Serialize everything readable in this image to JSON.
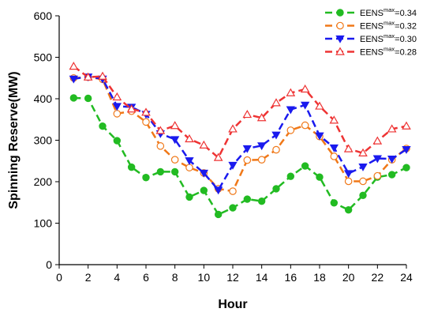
{
  "chart_data": {
    "type": "line",
    "title": "",
    "xlabel": "Hour",
    "ylabel": "Spinning Reserve(MW)",
    "xlim": [
      0,
      24
    ],
    "ylim": [
      0,
      600
    ],
    "xticks": [
      0,
      2,
      4,
      6,
      8,
      10,
      12,
      14,
      16,
      18,
      20,
      22,
      24
    ],
    "yticks": [
      0,
      100,
      200,
      300,
      400,
      500,
      600
    ],
    "grid": false,
    "legend_position": "top-right",
    "x": [
      1,
      2,
      3,
      4,
      5,
      6,
      7,
      8,
      9,
      10,
      11,
      12,
      13,
      14,
      15,
      16,
      17,
      18,
      19,
      20,
      21,
      22,
      23,
      24
    ],
    "series": [
      {
        "name": "EENS^max=0.34",
        "legend_base": "EENS",
        "legend_sup": "max",
        "legend_value": "=0.34",
        "color": "#22bb22",
        "marker": "circle-filled",
        "values": [
          402,
          401,
          334,
          299,
          235,
          210,
          224,
          224,
          163,
          179,
          121,
          137,
          158,
          153,
          183,
          213,
          238,
          211,
          149,
          132,
          167,
          211,
          217,
          234
        ]
      },
      {
        "name": "EENS^max=0.32",
        "legend_base": "EENS",
        "legend_sup": "max",
        "legend_value": "=0.32",
        "color": "#f07818",
        "marker": "circle-open",
        "values": [
          450,
          452,
          447,
          364,
          370,
          344,
          286,
          253,
          234,
          221,
          183,
          177,
          252,
          253,
          277,
          324,
          336,
          309,
          261,
          201,
          201,
          214,
          253,
          280
        ]
      },
      {
        "name": "EENS^max=0.30",
        "legend_base": "EENS",
        "legend_sup": "max",
        "legend_value": "=0.30",
        "color": "#1a1aee",
        "marker": "triangle-down-filled",
        "values": [
          448,
          453,
          448,
          382,
          380,
          363,
          316,
          302,
          251,
          221,
          180,
          240,
          280,
          287,
          313,
          374,
          385,
          311,
          282,
          220,
          236,
          256,
          255,
          278
        ]
      },
      {
        "name": "EENS^max=0.28",
        "legend_base": "EENS",
        "legend_sup": "max",
        "legend_value": "=0.28",
        "color": "#ee3333",
        "marker": "triangle-up-open",
        "values": [
          478,
          452,
          454,
          404,
          375,
          367,
          323,
          335,
          303,
          288,
          258,
          327,
          362,
          354,
          390,
          414,
          423,
          382,
          348,
          279,
          269,
          298,
          327,
          334
        ]
      }
    ]
  }
}
